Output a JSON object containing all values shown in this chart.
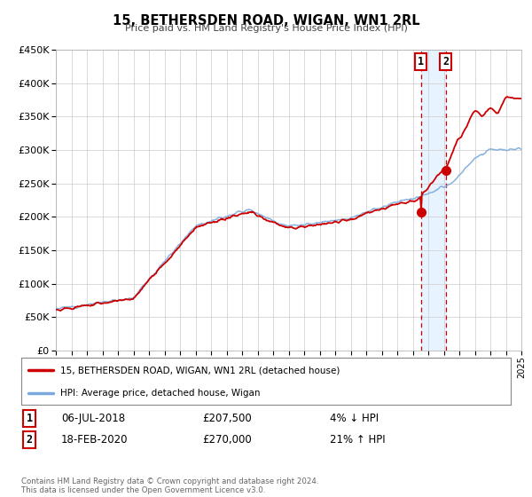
{
  "title": "15, BETHERSDEN ROAD, WIGAN, WN1 2RL",
  "subtitle": "Price paid vs. HM Land Registry's House Price Index (HPI)",
  "legend_label_red": "15, BETHERSDEN ROAD, WIGAN, WN1 2RL (detached house)",
  "legend_label_blue": "HPI: Average price, detached house, Wigan",
  "transaction1_date": "06-JUL-2018",
  "transaction1_price": "£207,500",
  "transaction1_hpi": "4% ↓ HPI",
  "transaction1_year": 2018.52,
  "transaction1_value": 207500,
  "transaction2_date": "18-FEB-2020",
  "transaction2_price": "£270,000",
  "transaction2_hpi": "21% ↑ HPI",
  "transaction2_year": 2020.13,
  "transaction2_value": 270000,
  "footer": "Contains HM Land Registry data © Crown copyright and database right 2024.\nThis data is licensed under the Open Government Licence v3.0.",
  "ylim": [
    0,
    450000
  ],
  "xlim_start": 1995,
  "xlim_end": 2025,
  "red_color": "#cc0000",
  "blue_color": "#7aaadd",
  "background_color": "#ffffff",
  "grid_color": "#cccccc",
  "shade_color": "#ddeeff"
}
